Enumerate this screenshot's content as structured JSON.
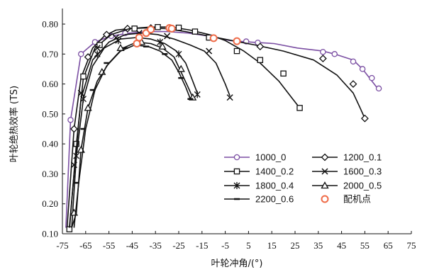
{
  "chart_data": {
    "type": "line",
    "xlabel": "叶轮冲角/(°)",
    "ylabel": "叶轮绝热效率 (TS)",
    "xlim": [
      -75,
      75
    ],
    "ylim": [
      0.1,
      0.8
    ],
    "xticks": [
      -75,
      -65,
      -55,
      -45,
      -35,
      -25,
      -15,
      -5,
      5,
      15,
      25,
      35,
      45,
      55,
      65,
      75
    ],
    "xtick_labels": [
      "-75",
      "-65",
      "-55",
      "-45",
      "-35",
      "-25",
      "-15",
      "-5",
      "5",
      "15",
      "25",
      "35",
      "45",
      "55",
      "65",
      "75"
    ],
    "yticks": [
      0.1,
      0.2,
      0.3,
      0.4,
      0.5,
      0.6,
      0.7,
      0.8
    ],
    "ytick_labels": [
      "0.10",
      "0.20",
      "0.30",
      "0.40",
      "0.50",
      "0.60",
      "0.70",
      "0.80"
    ],
    "grid": false,
    "legend_position": "bottom-right",
    "series": [
      {
        "name": "1000_0",
        "color": "#7b4fa3",
        "marker": "circle",
        "x": [
          -73.5,
          -71.5,
          -67,
          -61,
          -54,
          -46,
          -38,
          -30,
          -21,
          -12,
          -3,
          6,
          16,
          26,
          37,
          42,
          50,
          54,
          57,
          60,
          62
        ],
        "y": [
          0.12,
          0.48,
          0.7,
          0.74,
          0.76,
          0.77,
          0.775,
          0.775,
          0.77,
          0.76,
          0.745,
          0.74,
          0.735,
          0.72,
          0.71,
          0.7,
          0.68,
          0.65,
          0.62,
          0.59,
          0.585
        ],
        "markers": [
          [
            -71.5,
            0.48
          ],
          [
            -67,
            0.7
          ],
          [
            -61,
            0.74
          ],
          [
            -54,
            0.76
          ],
          [
            -48,
            0.77
          ],
          [
            4,
            0.742
          ],
          [
            9,
            0.738
          ],
          [
            37,
            0.707
          ],
          [
            42,
            0.7
          ],
          [
            50,
            0.675
          ],
          [
            54,
            0.65
          ],
          [
            58,
            0.62
          ],
          [
            61,
            0.585
          ]
        ]
      },
      {
        "name": "1200_0.1",
        "color": "#111111",
        "marker": "diamond",
        "x": [
          -73,
          -70,
          -67,
          -62,
          -57,
          -52,
          -46,
          -39,
          -31,
          -22,
          -12,
          -2,
          8,
          20,
          33,
          43,
          50,
          53,
          55
        ],
        "y": [
          0.12,
          0.45,
          0.62,
          0.72,
          0.76,
          0.78,
          0.785,
          0.787,
          0.785,
          0.775,
          0.76,
          0.745,
          0.73,
          0.71,
          0.68,
          0.63,
          0.57,
          0.52,
          0.485
        ],
        "markers": [
          [
            -70,
            0.45
          ],
          [
            -64,
            0.69
          ],
          [
            -56,
            0.765
          ],
          [
            -47,
            0.785
          ],
          [
            -37,
            0.787
          ],
          [
            -29,
            0.785
          ],
          [
            10,
            0.725
          ],
          [
            37,
            0.685
          ],
          [
            50,
            0.6
          ],
          [
            55,
            0.485
          ]
        ]
      },
      {
        "name": "1400_0.2",
        "color": "#111111",
        "marker": "square",
        "x": [
          -72,
          -69,
          -66,
          -61,
          -54,
          -46,
          -37,
          -28,
          -20,
          -12,
          -5,
          3,
          10,
          18,
          24,
          27
        ],
        "y": [
          0.11,
          0.4,
          0.62,
          0.72,
          0.765,
          0.785,
          0.79,
          0.79,
          0.78,
          0.765,
          0.745,
          0.71,
          0.67,
          0.61,
          0.55,
          0.52
        ],
        "markers": [
          [
            -72,
            0.115
          ],
          [
            -69,
            0.4
          ],
          [
            -66,
            0.625
          ],
          [
            -59,
            0.73
          ],
          [
            -44,
            0.785
          ],
          [
            -34,
            0.79
          ],
          [
            -25,
            0.788
          ],
          [
            -18,
            0.775
          ],
          [
            -12,
            0.755
          ],
          [
            0,
            0.71
          ],
          [
            10,
            0.68
          ],
          [
            20,
            0.635
          ],
          [
            27,
            0.52
          ]
        ]
      },
      {
        "name": "1600_0.3",
        "color": "#111111",
        "marker": "x",
        "x": [
          -72,
          -70,
          -67,
          -62,
          -55,
          -48,
          -41,
          -34,
          -27,
          -20,
          -14,
          -9,
          -5,
          -3
        ],
        "y": [
          0.12,
          0.3,
          0.55,
          0.68,
          0.74,
          0.765,
          0.77,
          0.765,
          0.75,
          0.73,
          0.71,
          0.67,
          0.6,
          0.56
        ],
        "markers": [
          [
            -70,
            0.33
          ],
          [
            -67,
            0.57
          ],
          [
            -60,
            0.72
          ],
          [
            -52,
            0.755
          ],
          [
            -42,
            0.77
          ],
          [
            -30,
            0.76
          ],
          [
            -12,
            0.71
          ],
          [
            -3,
            0.555
          ]
        ]
      },
      {
        "name": "1800_0.4",
        "color": "#111111",
        "marker": "asterisk",
        "x": [
          -71,
          -69,
          -66,
          -62,
          -57,
          -50,
          -43,
          -37,
          -31,
          -26,
          -22,
          -19,
          -17
        ],
        "y": [
          0.12,
          0.36,
          0.55,
          0.66,
          0.72,
          0.75,
          0.755,
          0.75,
          0.735,
          0.71,
          0.67,
          0.61,
          0.57
        ],
        "markers": [
          [
            -69,
            0.36
          ],
          [
            -66,
            0.55
          ],
          [
            -60,
            0.7
          ],
          [
            -51,
            0.745
          ],
          [
            -42,
            0.755
          ],
          [
            -33,
            0.74
          ],
          [
            -25,
            0.7
          ],
          [
            -17,
            0.565
          ]
        ]
      },
      {
        "name": "2000_0.5",
        "color": "#111111",
        "marker": "triangle",
        "x": [
          -71,
          -69,
          -67,
          -64,
          -60,
          -55,
          -49,
          -43,
          -37,
          -32,
          -27,
          -24,
          -21,
          -19
        ],
        "y": [
          0.12,
          0.17,
          0.38,
          0.52,
          0.61,
          0.67,
          0.72,
          0.74,
          0.735,
          0.72,
          0.69,
          0.64,
          0.59,
          0.555
        ],
        "markers": [
          [
            -70,
            0.17
          ],
          [
            -67,
            0.38
          ],
          [
            -64,
            0.52
          ],
          [
            -58,
            0.64
          ],
          [
            -50,
            0.72
          ],
          [
            -41,
            0.74
          ],
          [
            -32,
            0.725
          ],
          [
            -24,
            0.65
          ],
          [
            -19,
            0.555
          ]
        ]
      },
      {
        "name": "2200_0.6",
        "color": "#111111",
        "marker": "dash",
        "x": [
          -70,
          -68,
          -65,
          -61,
          -56,
          -50,
          -44,
          -38,
          -33,
          -28,
          -25,
          -22,
          -20
        ],
        "y": [
          0.12,
          0.27,
          0.45,
          0.58,
          0.66,
          0.71,
          0.73,
          0.725,
          0.71,
          0.68,
          0.64,
          0.59,
          0.55
        ],
        "markers": [
          [
            -69,
            0.27
          ],
          [
            -66,
            0.45
          ],
          [
            -62,
            0.58
          ],
          [
            -56,
            0.67
          ],
          [
            -48,
            0.72
          ],
          [
            -39,
            0.725
          ],
          [
            -31,
            0.7
          ],
          [
            -24,
            0.62
          ],
          [
            -20,
            0.55
          ]
        ]
      },
      {
        "name": "配机点",
        "color": "#ef6b48",
        "marker": "circle-open",
        "line": false,
        "x": [
          -43,
          -42,
          -39,
          -37,
          -29,
          -28,
          -10,
          0
        ],
        "y": [
          0.735,
          0.755,
          0.77,
          0.782,
          0.787,
          0.785,
          0.753,
          0.743
        ],
        "markers": [
          [
            -43,
            0.735
          ],
          [
            -42,
            0.755
          ],
          [
            -39,
            0.77
          ],
          [
            -37,
            0.782
          ],
          [
            -29,
            0.787
          ],
          [
            -28,
            0.785
          ],
          [
            -10,
            0.753
          ],
          [
            0,
            0.743
          ]
        ]
      }
    ]
  }
}
